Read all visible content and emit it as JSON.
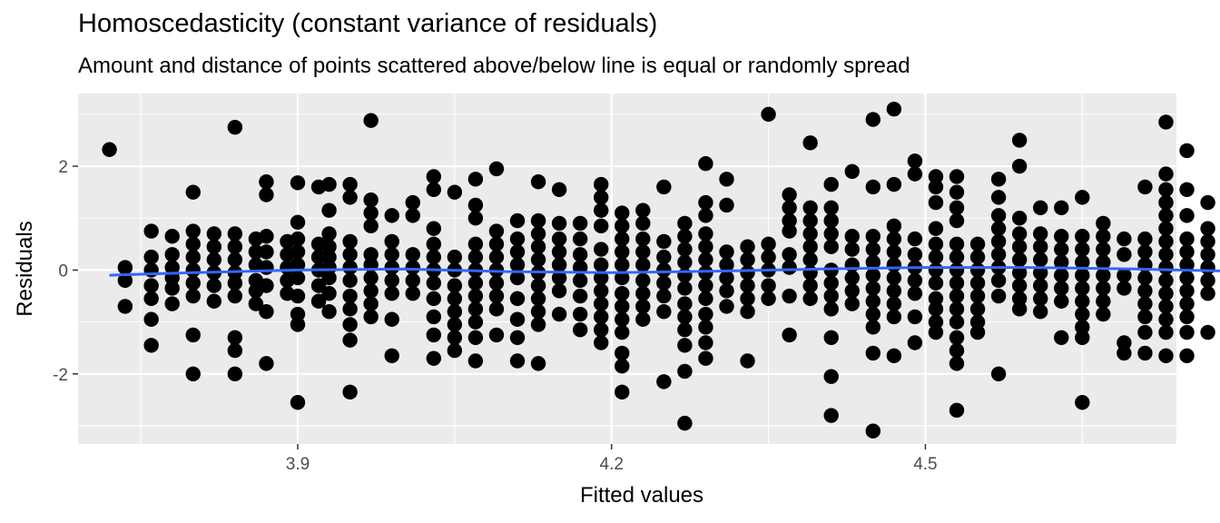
{
  "chart_data": {
    "type": "scatter",
    "title": "Homoscedasticity (constant variance of residuals)",
    "subtitle": "Amount and distance of points scattered above/below line is equal or randomly spread",
    "xlabel": "Fitted values",
    "ylabel": "Residuals",
    "xlim": [
      3.69,
      4.74
    ],
    "ylim": [
      -3.35,
      3.4
    ],
    "x_ticks": [
      3.9,
      4.2,
      4.5
    ],
    "x_tick_labels": [
      "3.9",
      "4.2",
      "4.5"
    ],
    "y_ticks": [
      -2,
      0,
      2
    ],
    "y_tick_labels": [
      "-2",
      "0",
      "2"
    ],
    "grid": true,
    "background": "#EBEBEB",
    "point_color": "#000000",
    "smooth_color": "#3366FF",
    "series": [
      {
        "kind": "points",
        "columns": [
          {
            "x": 3.72,
            "y": [
              2.32
            ]
          },
          {
            "x": 3.735,
            "y": [
              0.05,
              -0.2,
              -0.7
            ]
          },
          {
            "x": 3.76,
            "y": [
              0.75,
              0.25,
              0.0,
              -0.3,
              -0.55,
              -0.95,
              -1.45
            ]
          },
          {
            "x": 3.78,
            "y": [
              0.65,
              0.3,
              0.05,
              -0.15,
              -0.35,
              -0.65
            ]
          },
          {
            "x": 3.8,
            "y": [
              1.5,
              0.75,
              0.5,
              0.25,
              0.0,
              -0.25,
              -0.5,
              -1.25,
              -2.0
            ]
          },
          {
            "x": 3.82,
            "y": [
              0.7,
              0.45,
              0.2,
              -0.05,
              -0.3,
              -0.6
            ]
          },
          {
            "x": 3.84,
            "y": [
              2.75,
              0.7,
              0.45,
              0.2,
              -0.05,
              -0.25,
              -0.5,
              -1.3,
              -1.55,
              -2.0
            ]
          },
          {
            "x": 3.86,
            "y": [
              0.6,
              0.35,
              0.1,
              -0.2,
              -0.4,
              -0.65
            ]
          },
          {
            "x": 3.87,
            "y": [
              1.7,
              1.45,
              0.65,
              0.35,
              0.05,
              -0.3,
              -0.8,
              -1.8
            ]
          },
          {
            "x": 3.89,
            "y": [
              0.55,
              0.3,
              0.05,
              -0.2,
              -0.45
            ]
          },
          {
            "x": 3.9,
            "y": [
              1.68,
              0.92,
              0.6,
              0.35,
              0.1,
              -0.15,
              -0.5,
              -0.85,
              -1.05,
              -2.55
            ]
          },
          {
            "x": 3.92,
            "y": [
              1.6,
              0.5,
              0.25,
              0.0,
              -0.3,
              -0.6
            ]
          },
          {
            "x": 3.93,
            "y": [
              1.65,
              1.15,
              0.7,
              0.45,
              0.25,
              0.05,
              -0.15,
              -0.45,
              -0.8
            ]
          },
          {
            "x": 3.95,
            "y": [
              1.65,
              1.4,
              0.55,
              0.3,
              0.05,
              -0.2,
              -0.5,
              -0.75,
              -1.05,
              -1.35,
              -2.35
            ]
          },
          {
            "x": 3.97,
            "y": [
              2.88,
              1.35,
              1.1,
              0.85,
              0.3,
              0.1,
              -0.15,
              -0.4,
              -0.65,
              -0.9
            ]
          },
          {
            "x": 3.99,
            "y": [
              1.05,
              0.55,
              0.3,
              0.05,
              -0.2,
              -0.45,
              -0.95,
              -1.65
            ]
          },
          {
            "x": 4.01,
            "y": [
              1.3,
              1.05,
              0.3,
              0.05,
              -0.2,
              -0.45
            ]
          },
          {
            "x": 4.03,
            "y": [
              1.8,
              1.55,
              0.8,
              0.5,
              0.25,
              0.0,
              -0.25,
              -0.55,
              -0.9,
              -1.25,
              -1.7
            ]
          },
          {
            "x": 4.05,
            "y": [
              1.5,
              0.25,
              0.0,
              -0.3,
              -0.55,
              -0.8,
              -1.05,
              -1.3,
              -1.55
            ]
          },
          {
            "x": 4.07,
            "y": [
              1.75,
              1.25,
              1.0,
              0.5,
              0.25,
              0.0,
              -0.25,
              -0.5,
              -0.75,
              -1.0,
              -1.3,
              -1.75
            ]
          },
          {
            "x": 4.09,
            "y": [
              1.95,
              0.75,
              0.5,
              0.25,
              0.0,
              -0.25,
              -0.5,
              -0.75,
              -1.25
            ]
          },
          {
            "x": 4.11,
            "y": [
              0.95,
              0.6,
              0.35,
              0.1,
              -0.15,
              -0.55,
              -0.95,
              -1.3,
              -1.75
            ]
          },
          {
            "x": 4.13,
            "y": [
              1.7,
              0.95,
              0.7,
              0.45,
              0.2,
              -0.05,
              -0.3,
              -0.55,
              -0.8,
              -1.05,
              -1.8
            ]
          },
          {
            "x": 4.15,
            "y": [
              1.55,
              0.9,
              0.6,
              0.35,
              0.1,
              -0.15,
              -0.4,
              -0.85
            ]
          },
          {
            "x": 4.17,
            "y": [
              0.9,
              0.6,
              0.3,
              0.05,
              -0.2,
              -0.5,
              -0.85,
              -1.15
            ]
          },
          {
            "x": 4.19,
            "y": [
              1.65,
              1.4,
              1.15,
              0.85,
              0.4,
              0.1,
              -0.15,
              -0.4,
              -0.65,
              -0.9,
              -1.15,
              -1.4
            ]
          },
          {
            "x": 4.21,
            "y": [
              1.1,
              0.85,
              0.6,
              0.35,
              0.1,
              -0.15,
              -0.45,
              -0.7,
              -0.95,
              -1.2,
              -1.6,
              -1.85,
              -2.35
            ]
          },
          {
            "x": 4.23,
            "y": [
              1.15,
              0.9,
              0.6,
              0.35,
              0.1,
              -0.2,
              -0.45,
              -0.7,
              -0.95
            ]
          },
          {
            "x": 4.25,
            "y": [
              1.6,
              0.55,
              0.25,
              0.0,
              -0.25,
              -0.5,
              -0.8,
              -2.15
            ]
          },
          {
            "x": 4.27,
            "y": [
              0.9,
              0.65,
              0.4,
              0.15,
              -0.1,
              -0.35,
              -0.65,
              -0.9,
              -1.15,
              -1.45,
              -1.95,
              -2.95
            ]
          },
          {
            "x": 4.29,
            "y": [
              2.05,
              1.3,
              1.05,
              0.7,
              0.45,
              0.2,
              -0.05,
              -0.3,
              -0.55,
              -0.85,
              -1.1,
              -1.4,
              -1.7
            ]
          },
          {
            "x": 4.31,
            "y": [
              1.75,
              1.25,
              0.35,
              0.1,
              -0.15,
              -0.4,
              -0.7
            ]
          },
          {
            "x": 4.33,
            "y": [
              0.45,
              0.2,
              -0.05,
              -0.3,
              -0.55,
              -0.8,
              -1.75
            ]
          },
          {
            "x": 4.35,
            "y": [
              3.0,
              0.5,
              0.25,
              0.0,
              -0.3,
              -0.55
            ]
          },
          {
            "x": 4.37,
            "y": [
              1.45,
              1.2,
              0.95,
              0.75,
              0.3,
              0.05,
              -0.5,
              -1.25
            ]
          },
          {
            "x": 4.39,
            "y": [
              2.45,
              1.2,
              0.95,
              0.7,
              0.45,
              0.2,
              -0.05,
              -0.3,
              -0.55
            ]
          },
          {
            "x": 4.41,
            "y": [
              1.65,
              1.2,
              0.95,
              0.7,
              0.45,
              0.0,
              -0.25,
              -0.5,
              -0.75,
              -1.3,
              -2.05,
              -2.8
            ]
          },
          {
            "x": 4.43,
            "y": [
              1.9,
              0.65,
              0.4,
              0.1,
              -0.15,
              -0.4,
              -0.65
            ]
          },
          {
            "x": 4.45,
            "y": [
              2.9,
              1.6,
              0.65,
              0.4,
              0.15,
              -0.1,
              -0.35,
              -0.6,
              -0.85,
              -1.1,
              -1.6,
              -3.1
            ]
          },
          {
            "x": 4.47,
            "y": [
              3.1,
              1.65,
              0.85,
              0.6,
              0.35,
              0.1,
              -0.15,
              -0.4,
              -0.65,
              -0.9,
              -1.65
            ]
          },
          {
            "x": 4.49,
            "y": [
              2.1,
              1.85,
              0.6,
              0.3,
              0.05,
              -0.2,
              -0.45,
              -0.9,
              -1.4
            ]
          },
          {
            "x": 4.51,
            "y": [
              1.8,
              1.6,
              1.3,
              0.8,
              0.5,
              0.25,
              0.0,
              -0.25,
              -0.55,
              -0.75,
              -1.0,
              -1.2
            ]
          },
          {
            "x": 4.53,
            "y": [
              1.8,
              1.5,
              1.2,
              0.95,
              0.5,
              0.25,
              0.0,
              -0.25,
              -0.5,
              -0.75,
              -1.0,
              -1.3,
              -1.55,
              -1.8,
              -2.7
            ]
          },
          {
            "x": 4.55,
            "y": [
              0.5,
              0.25,
              0.0,
              -0.25,
              -0.5,
              -0.75,
              -1.0,
              -1.2
            ]
          },
          {
            "x": 4.57,
            "y": [
              1.75,
              1.4,
              1.05,
              0.8,
              0.55,
              0.3,
              0.05,
              -0.2,
              -0.5,
              -2.0
            ]
          },
          {
            "x": 4.59,
            "y": [
              2.5,
              2.0,
              1.0,
              0.7,
              0.45,
              0.2,
              -0.05,
              -0.3,
              -0.55,
              -0.75
            ]
          },
          {
            "x": 4.61,
            "y": [
              1.2,
              0.7,
              0.45,
              0.2,
              -0.05,
              -0.3,
              -0.55,
              -0.8
            ]
          },
          {
            "x": 4.63,
            "y": [
              1.2,
              0.65,
              0.4,
              0.15,
              -0.1,
              -0.35,
              -0.6,
              -1.3
            ]
          },
          {
            "x": 4.65,
            "y": [
              1.4,
              0.65,
              0.4,
              0.15,
              -0.1,
              -0.35,
              -0.6,
              -0.85,
              -1.1,
              -1.3,
              -2.55
            ]
          },
          {
            "x": 4.67,
            "y": [
              0.9,
              0.65,
              0.4,
              0.15,
              -0.1,
              -0.35,
              -0.6,
              -0.85
            ]
          },
          {
            "x": 4.69,
            "y": [
              0.6,
              0.3,
              -0.1,
              -0.35,
              -1.4,
              -1.6
            ]
          },
          {
            "x": 4.71,
            "y": [
              1.6,
              0.6,
              0.35,
              0.1,
              -0.15,
              -0.4,
              -0.65,
              -0.9,
              -1.2,
              -1.6
            ]
          },
          {
            "x": 4.73,
            "y": [
              2.85,
              1.85,
              1.55,
              1.3,
              1.05,
              0.8,
              0.55,
              0.3,
              0.05,
              -0.2,
              -0.45,
              -0.7,
              -0.95,
              -1.2,
              -1.65
            ]
          },
          {
            "x": 4.75,
            "y": [
              2.3,
              1.55,
              1.05,
              0.6,
              0.35,
              0.1,
              -0.15,
              -0.4,
              -0.65,
              -0.9,
              -1.2,
              -1.65
            ]
          },
          {
            "x": 4.77,
            "y": [
              1.3,
              0.8,
              0.55,
              0.3,
              0.05,
              -0.2,
              -0.45,
              -1.2
            ]
          },
          {
            "x": 4.79,
            "y": [
              2.05,
              1.5,
              0.55,
              -0.7,
              -0.95,
              -1.45,
              -1.95
            ]
          }
        ]
      },
      {
        "kind": "smooth",
        "x": [
          3.72,
          3.8,
          3.9,
          4.0,
          4.1,
          4.2,
          4.3,
          4.4,
          4.5,
          4.6,
          4.7,
          4.79
        ],
        "y": [
          -0.1,
          -0.05,
          0.0,
          0.02,
          -0.03,
          -0.05,
          -0.02,
          0.02,
          0.05,
          0.05,
          0.02,
          -0.02
        ]
      }
    ]
  }
}
